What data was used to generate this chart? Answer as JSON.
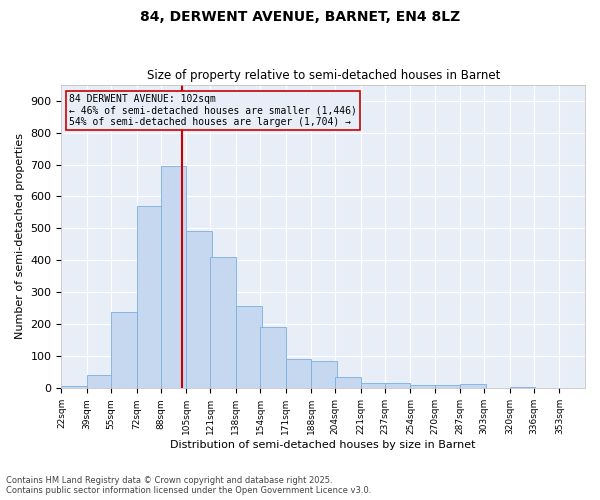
{
  "title1": "84, DERWENT AVENUE, BARNET, EN4 8LZ",
  "title2": "Size of property relative to semi-detached houses in Barnet",
  "xlabel": "Distribution of semi-detached houses by size in Barnet",
  "ylabel": "Number of semi-detached properties",
  "bins": [
    "22sqm",
    "39sqm",
    "55sqm",
    "72sqm",
    "88sqm",
    "105sqm",
    "121sqm",
    "138sqm",
    "154sqm",
    "171sqm",
    "188sqm",
    "204sqm",
    "221sqm",
    "237sqm",
    "254sqm",
    "270sqm",
    "287sqm",
    "303sqm",
    "320sqm",
    "336sqm",
    "353sqm"
  ],
  "bin_edges": [
    22,
    39,
    55,
    72,
    88,
    105,
    121,
    138,
    154,
    171,
    188,
    204,
    221,
    237,
    254,
    270,
    287,
    303,
    320,
    336,
    353
  ],
  "bar_heights": [
    7,
    42,
    238,
    570,
    695,
    492,
    410,
    258,
    192,
    93,
    85,
    37,
    16,
    18,
    10,
    12,
    13,
    0,
    3,
    0,
    0
  ],
  "bar_color": "#c5d8f0",
  "bar_edge_color": "#7aafe0",
  "property_size": 102,
  "vline_color": "#cc0000",
  "annotation_title": "84 DERWENT AVENUE: 102sqm",
  "annotation_line1": "← 46% of semi-detached houses are smaller (1,446)",
  "annotation_line2": "54% of semi-detached houses are larger (1,704) →",
  "box_edge_color": "#cc0000",
  "ylim": [
    0,
    950
  ],
  "yticks": [
    0,
    100,
    200,
    300,
    400,
    500,
    600,
    700,
    800,
    900
  ],
  "footer1": "Contains HM Land Registry data © Crown copyright and database right 2025.",
  "footer2": "Contains public sector information licensed under the Open Government Licence v3.0.",
  "bg_color": "#e8eef8",
  "grid_color": "#ffffff"
}
